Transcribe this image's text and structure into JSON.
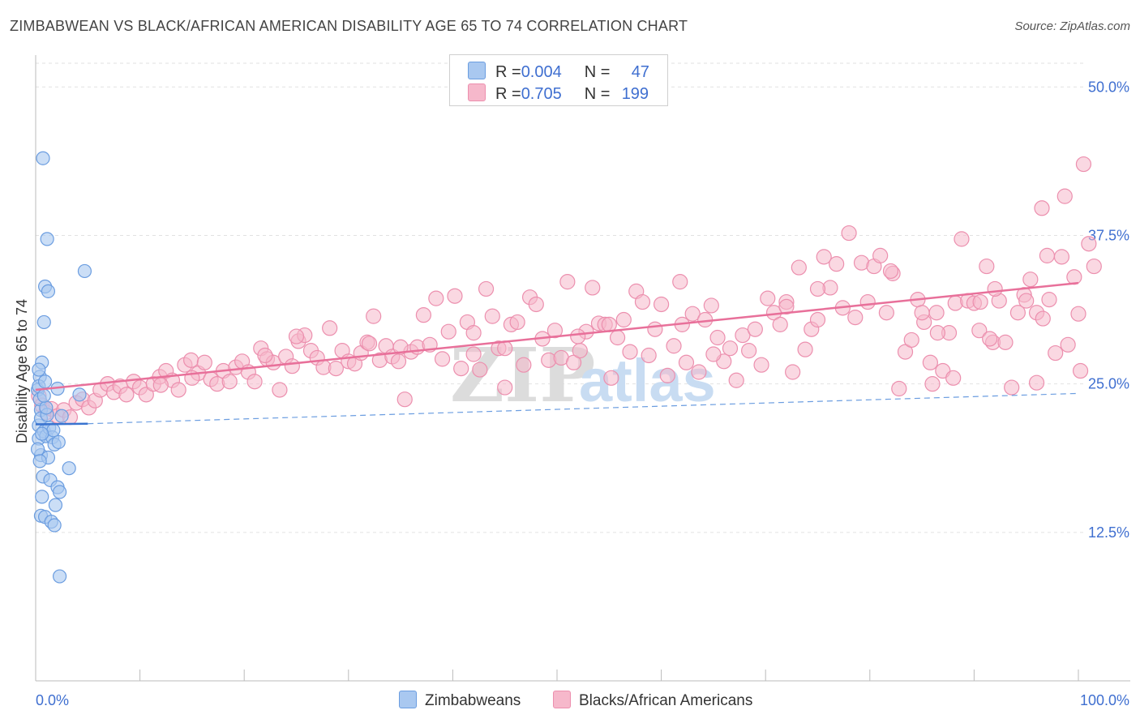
{
  "title": "ZIMBABWEAN VS BLACK/AFRICAN AMERICAN DISABILITY AGE 65 TO 74 CORRELATION CHART",
  "source": "Source: ZipAtlas.com",
  "watermark": {
    "zip": "ZIP",
    "atlas": "atlas"
  },
  "colors": {
    "blue_fill": "#a9c8f0",
    "blue_stroke": "#6b9de0",
    "blue_line": "#3a74d0",
    "pink_fill": "#f6b8cb",
    "pink_stroke": "#ec8fae",
    "pink_line": "#e8709a",
    "axis_label": "#3f6fd0",
    "grid": "#e2e2e2"
  },
  "legend": {
    "row1": {
      "r_label": "R = ",
      "r_value": "0.004",
      "n_label": "N = ",
      "n_value": "47"
    },
    "row2": {
      "r_label": "R = ",
      "r_value": "0.705",
      "n_label": "N = ",
      "n_value": "199"
    }
  },
  "bottom_legend": {
    "blue": "Zimbabweans",
    "pink": "Blacks/African Americans"
  },
  "chart_data": {
    "type": "scatter",
    "title": "ZIMBABWEAN VS BLACK/AFRICAN AMERICAN DISABILITY AGE 65 TO 74 CORRELATION CHART",
    "xlabel": "",
    "ylabel": "Disability Age 65 to 74",
    "xlim": [
      0,
      100
    ],
    "ylim": [
      0,
      52
    ],
    "x_tick_labels": [
      "0.0%",
      "100.0%"
    ],
    "y_ticks": [
      12.5,
      25.0,
      37.5,
      50.0
    ],
    "y_tick_labels": [
      "12.5%",
      "25.0%",
      "37.5%",
      "50.0%"
    ],
    "grid": true,
    "series": [
      {
        "name": "Zimbabweans",
        "color": "#a9c8f0",
        "r": 0.004,
        "n": 47,
        "trend_solid": [
          [
            0.0,
            21.6
          ],
          [
            5.0,
            21.65
          ]
        ],
        "trend_dashed": [
          [
            5.0,
            21.65
          ],
          [
            100.0,
            24.2
          ]
        ],
        "points": [
          [
            0.3,
            21.5
          ],
          [
            0.5,
            22.8
          ],
          [
            0.2,
            24.5
          ],
          [
            0.4,
            25.6
          ],
          [
            0.6,
            26.8
          ],
          [
            0.3,
            20.4
          ],
          [
            0.8,
            21.0
          ],
          [
            1.0,
            20.6
          ],
          [
            1.3,
            21.3
          ],
          [
            1.6,
            20.5
          ],
          [
            0.5,
            19.0
          ],
          [
            1.8,
            19.9
          ],
          [
            2.2,
            20.1
          ],
          [
            1.2,
            18.8
          ],
          [
            0.7,
            17.2
          ],
          [
            1.4,
            16.9
          ],
          [
            2.1,
            16.3
          ],
          [
            2.3,
            15.9
          ],
          [
            0.6,
            15.5
          ],
          [
            1.9,
            14.8
          ],
          [
            0.5,
            13.9
          ],
          [
            0.9,
            13.8
          ],
          [
            1.5,
            13.4
          ],
          [
            1.8,
            13.1
          ],
          [
            2.3,
            8.8
          ],
          [
            0.7,
            44.0
          ],
          [
            1.1,
            37.2
          ],
          [
            0.9,
            33.2
          ],
          [
            1.2,
            32.8
          ],
          [
            0.8,
            30.2
          ],
          [
            2.1,
            24.6
          ],
          [
            0.3,
            24.8
          ],
          [
            4.7,
            34.5
          ],
          [
            4.2,
            24.1
          ],
          [
            3.2,
            17.9
          ],
          [
            0.5,
            22.1
          ],
          [
            0.4,
            23.7
          ],
          [
            0.2,
            19.5
          ],
          [
            1.1,
            22.4
          ],
          [
            1.7,
            21.1
          ],
          [
            0.9,
            25.2
          ],
          [
            0.3,
            26.2
          ],
          [
            2.5,
            22.3
          ],
          [
            0.6,
            20.8
          ],
          [
            1.0,
            23.0
          ],
          [
            0.4,
            18.5
          ],
          [
            0.8,
            24.0
          ]
        ]
      },
      {
        "name": "Blacks/African Americans",
        "color": "#f6b8cb",
        "r": 0.705,
        "n": 199,
        "trend_solid": [
          [
            0.0,
            24.5
          ],
          [
            100.0,
            33.5
          ]
        ],
        "points": [
          [
            0.3,
            24.0
          ],
          [
            0.6,
            23.2
          ],
          [
            1.0,
            22.6
          ],
          [
            1.5,
            22.9
          ],
          [
            2.1,
            22.3
          ],
          [
            2.7,
            22.8
          ],
          [
            3.3,
            22.2
          ],
          [
            3.9,
            23.4
          ],
          [
            4.5,
            23.7
          ],
          [
            5.1,
            23.0
          ],
          [
            5.7,
            23.6
          ],
          [
            6.2,
            24.5
          ],
          [
            6.9,
            25.0
          ],
          [
            7.5,
            24.3
          ],
          [
            8.1,
            24.8
          ],
          [
            8.7,
            24.1
          ],
          [
            9.4,
            25.2
          ],
          [
            10.0,
            24.7
          ],
          [
            10.6,
            24.1
          ],
          [
            11.3,
            25.0
          ],
          [
            11.9,
            25.6
          ],
          [
            12.5,
            26.1
          ],
          [
            13.1,
            25.3
          ],
          [
            13.7,
            24.5
          ],
          [
            14.3,
            26.6
          ],
          [
            14.9,
            27.0
          ],
          [
            15.6,
            25.9
          ],
          [
            16.2,
            26.8
          ],
          [
            16.8,
            25.4
          ],
          [
            17.4,
            25.0
          ],
          [
            18.0,
            26.1
          ],
          [
            18.6,
            25.2
          ],
          [
            19.2,
            26.4
          ],
          [
            19.8,
            26.9
          ],
          [
            20.4,
            26.0
          ],
          [
            21.0,
            25.2
          ],
          [
            21.6,
            28.0
          ],
          [
            22.2,
            27.1
          ],
          [
            22.8,
            26.8
          ],
          [
            23.4,
            24.5
          ],
          [
            24.0,
            27.3
          ],
          [
            24.6,
            26.5
          ],
          [
            25.2,
            28.6
          ],
          [
            25.8,
            29.1
          ],
          [
            26.4,
            27.8
          ],
          [
            27.0,
            27.2
          ],
          [
            27.6,
            26.4
          ],
          [
            28.2,
            29.7
          ],
          [
            28.8,
            26.3
          ],
          [
            29.4,
            27.8
          ],
          [
            30.0,
            26.9
          ],
          [
            30.6,
            26.7
          ],
          [
            31.2,
            27.6
          ],
          [
            31.8,
            28.5
          ],
          [
            32.4,
            30.7
          ],
          [
            33.0,
            27.0
          ],
          [
            33.6,
            28.2
          ],
          [
            34.2,
            27.3
          ],
          [
            34.8,
            26.9
          ],
          [
            35.4,
            23.7
          ],
          [
            36.0,
            27.7
          ],
          [
            36.6,
            28.1
          ],
          [
            37.2,
            30.8
          ],
          [
            37.8,
            28.3
          ],
          [
            38.4,
            32.2
          ],
          [
            39.0,
            27.1
          ],
          [
            39.6,
            29.4
          ],
          [
            40.2,
            32.4
          ],
          [
            40.8,
            26.3
          ],
          [
            41.4,
            30.2
          ],
          [
            42.0,
            29.3
          ],
          [
            42.6,
            26.2
          ],
          [
            43.2,
            33.0
          ],
          [
            43.8,
            30.7
          ],
          [
            44.4,
            28.0
          ],
          [
            45.0,
            24.7
          ],
          [
            45.6,
            30.0
          ],
          [
            46.2,
            30.2
          ],
          [
            46.8,
            26.6
          ],
          [
            47.4,
            32.3
          ],
          [
            48.0,
            31.7
          ],
          [
            48.6,
            28.8
          ],
          [
            49.2,
            27.0
          ],
          [
            49.8,
            29.5
          ],
          [
            50.4,
            27.2
          ],
          [
            51.0,
            33.6
          ],
          [
            51.6,
            26.8
          ],
          [
            52.2,
            27.8
          ],
          [
            52.8,
            29.4
          ],
          [
            53.4,
            33.1
          ],
          [
            54.0,
            30.1
          ],
          [
            54.6,
            30.0
          ],
          [
            55.2,
            25.5
          ],
          [
            55.8,
            28.9
          ],
          [
            56.4,
            30.4
          ],
          [
            57.0,
            27.7
          ],
          [
            57.6,
            32.8
          ],
          [
            58.2,
            31.9
          ],
          [
            58.8,
            27.4
          ],
          [
            59.4,
            29.6
          ],
          [
            60.0,
            31.7
          ],
          [
            60.6,
            25.7
          ],
          [
            61.2,
            28.2
          ],
          [
            61.8,
            33.6
          ],
          [
            62.4,
            26.8
          ],
          [
            63.0,
            30.9
          ],
          [
            63.6,
            26.0
          ],
          [
            64.2,
            30.4
          ],
          [
            64.8,
            31.6
          ],
          [
            65.4,
            28.9
          ],
          [
            66.0,
            26.9
          ],
          [
            66.6,
            28.0
          ],
          [
            67.2,
            25.3
          ],
          [
            67.8,
            29.1
          ],
          [
            68.4,
            27.8
          ],
          [
            69.0,
            29.6
          ],
          [
            69.6,
            26.6
          ],
          [
            70.2,
            32.2
          ],
          [
            70.8,
            31.0
          ],
          [
            71.4,
            30.0
          ],
          [
            72.0,
            31.9
          ],
          [
            72.6,
            26.0
          ],
          [
            73.2,
            34.8
          ],
          [
            73.8,
            27.9
          ],
          [
            74.4,
            29.6
          ],
          [
            75.0,
            30.4
          ],
          [
            75.6,
            35.7
          ],
          [
            76.2,
            33.1
          ],
          [
            76.8,
            35.1
          ],
          [
            77.4,
            31.4
          ],
          [
            78.0,
            37.7
          ],
          [
            78.6,
            30.6
          ],
          [
            79.2,
            35.2
          ],
          [
            79.8,
            31.9
          ],
          [
            80.4,
            34.9
          ],
          [
            81.0,
            35.8
          ],
          [
            81.6,
            31.0
          ],
          [
            82.2,
            34.3
          ],
          [
            82.8,
            24.6
          ],
          [
            83.4,
            27.7
          ],
          [
            84.0,
            28.7
          ],
          [
            84.6,
            32.1
          ],
          [
            85.2,
            30.2
          ],
          [
            85.8,
            26.8
          ],
          [
            86.4,
            31.0
          ],
          [
            87.0,
            26.1
          ],
          [
            87.6,
            29.3
          ],
          [
            88.2,
            31.8
          ],
          [
            88.8,
            37.2
          ],
          [
            89.4,
            32.0
          ],
          [
            90.0,
            31.8
          ],
          [
            90.6,
            31.9
          ],
          [
            91.2,
            34.9
          ],
          [
            91.8,
            28.5
          ],
          [
            92.4,
            32.0
          ],
          [
            93.0,
            28.5
          ],
          [
            93.6,
            24.7
          ],
          [
            94.2,
            31.0
          ],
          [
            94.8,
            32.5
          ],
          [
            95.4,
            33.8
          ],
          [
            96.0,
            31.0
          ],
          [
            96.6,
            30.5
          ],
          [
            97.2,
            32.1
          ],
          [
            97.8,
            27.6
          ],
          [
            98.4,
            35.7
          ],
          [
            99.0,
            28.3
          ],
          [
            99.6,
            34.0
          ],
          [
            100.0,
            30.9
          ],
          [
            15.0,
            25.5
          ],
          [
            25.0,
            29.0
          ],
          [
            35.0,
            28.1
          ],
          [
            45.0,
            28.0
          ],
          [
            55.0,
            30.0
          ],
          [
            65.0,
            27.5
          ],
          [
            75.0,
            33.0
          ],
          [
            85.0,
            31.0
          ],
          [
            95.0,
            32.0
          ],
          [
            12.0,
            24.9
          ],
          [
            22.0,
            27.4
          ],
          [
            32.0,
            28.4
          ],
          [
            42.0,
            27.5
          ],
          [
            52.0,
            29.0
          ],
          [
            62.0,
            30.0
          ],
          [
            72.0,
            31.5
          ],
          [
            82.0,
            34.5
          ],
          [
            92.0,
            33.0
          ],
          [
            96.5,
            39.8
          ],
          [
            98.7,
            40.8
          ],
          [
            100.5,
            43.5
          ],
          [
            100.2,
            26.1
          ],
          [
            101.0,
            36.8
          ],
          [
            96.0,
            25.1
          ],
          [
            88.0,
            25.5
          ],
          [
            101.5,
            34.9
          ],
          [
            97.0,
            35.8
          ],
          [
            86.0,
            25.0
          ],
          [
            90.5,
            29.5
          ],
          [
            91.5,
            28.8
          ],
          [
            86.5,
            29.3
          ]
        ]
      }
    ]
  }
}
